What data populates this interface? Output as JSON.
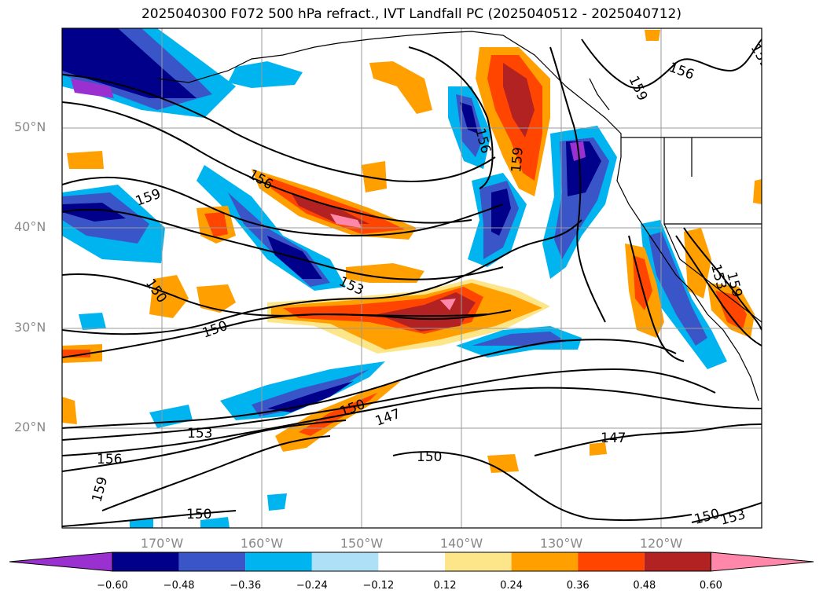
{
  "title": "2025040300 F072 500 hPa refract., IVT Landfall PC (2025040512 - 2025040712)",
  "lat_labels": [
    "50°N",
    "40°N",
    "30°N",
    "20°N"
  ],
  "lon_labels": [
    "170°W",
    "160°W",
    "150°W",
    "140°W",
    "130°W",
    "120°W"
  ],
  "colorbar": {
    "ticks": [
      "−0.60",
      "−0.48",
      "−0.36",
      "−0.24",
      "−0.12",
      "0.12",
      "0.24",
      "0.36",
      "0.48",
      "0.60"
    ],
    "colors": [
      "#9b30d0",
      "#00008b",
      "#3a55c8",
      "#00b4f0",
      "#aee0f8",
      "#ffffff",
      "#fde58a",
      "#ffa000",
      "#ff4500",
      "#b22222",
      "#ff88aa"
    ]
  },
  "contour_labels": [
    "156",
    "159",
    "156",
    "159",
    "159",
    "159",
    "156",
    "153",
    "150",
    "150",
    "150",
    "147",
    "153",
    "156",
    "159",
    "150",
    "147",
    "150",
    "150",
    "153",
    "153",
    "159"
  ]
}
